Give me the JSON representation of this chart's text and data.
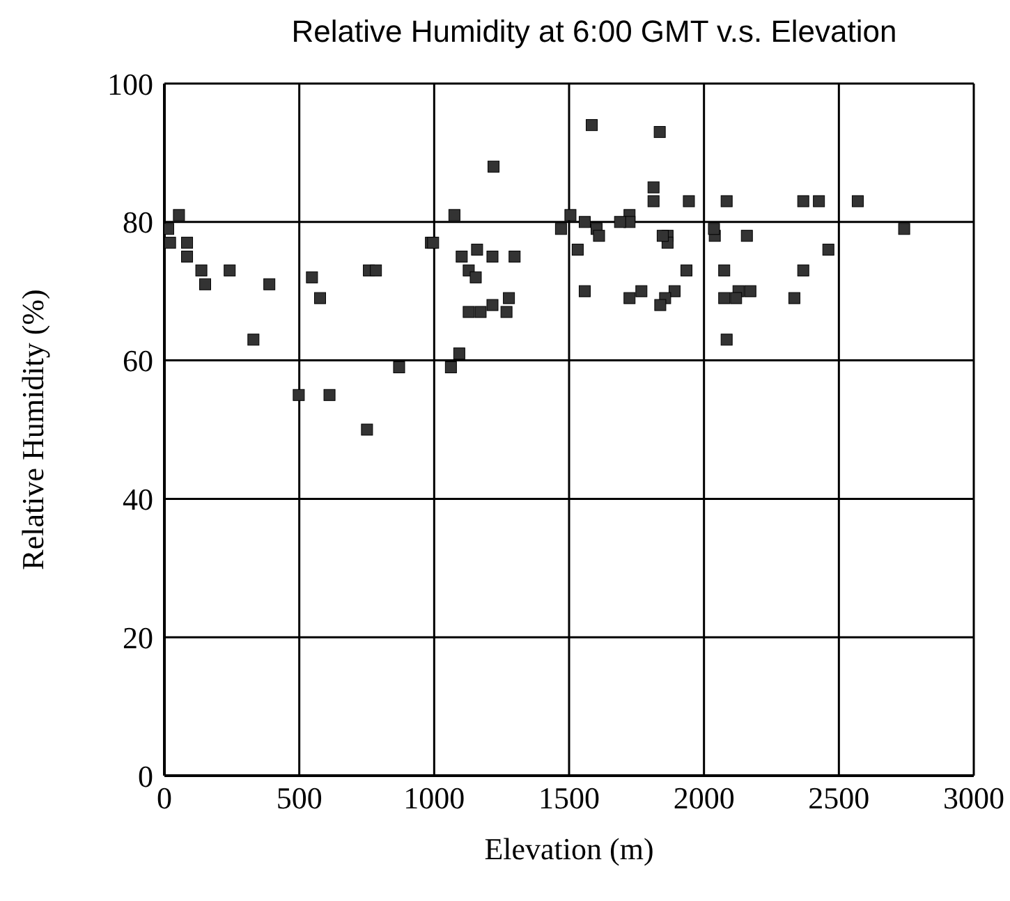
{
  "chart_data": {
    "type": "scatter",
    "title": "Relative Humidity at 6:00 GMT v.s. Elevation",
    "xlabel": "Elevation (m)",
    "ylabel": "Relative Humidity (%)",
    "x": [
      54,
      14,
      21,
      84,
      84,
      137,
      151,
      242,
      389,
      547,
      577,
      758,
      784,
      988,
      330,
      870,
      498,
      612,
      751,
      1075,
      996,
      1159,
      1102,
      1216,
      1298,
      1128,
      1154,
      1128,
      1172,
      1216,
      1277,
      1268,
      1093,
      1062,
      1220,
      1813,
      1813,
      1944,
      1724,
      1724,
      1689,
      1505,
      1470,
      1558,
      1602,
      1611,
      1532,
      1865,
      1865,
      1847,
      1935,
      1558,
      1768,
      1724,
      1891,
      1856,
      1838,
      2040,
      1584,
      1836,
      2084,
      2368,
      2426,
      2570,
      2037,
      2159,
      2461,
      2742,
      2075,
      2368,
      2128,
      2172,
      2075,
      2119,
      2335,
      2084
    ],
    "values": [
      81,
      79,
      77,
      77,
      75,
      73,
      71,
      73,
      71,
      72,
      69,
      73,
      73,
      77,
      63,
      59,
      55,
      55,
      50,
      81,
      77,
      76,
      75,
      75,
      75,
      73,
      72,
      67,
      67,
      68,
      69,
      67,
      61,
      59,
      88,
      85,
      83,
      83,
      81,
      80,
      80,
      81,
      79,
      80,
      79,
      78,
      76,
      78,
      77,
      78,
      73,
      70,
      70,
      69,
      70,
      69,
      68,
      78,
      94,
      93,
      83,
      83,
      83,
      83,
      79,
      78,
      76,
      79,
      73,
      73,
      70,
      70,
      69,
      69,
      69,
      63
    ],
    "color": "#333333",
    "marker": "square",
    "xlim": [
      0,
      3000
    ],
    "xticks": [
      0,
      500,
      1000,
      1500,
      2000,
      2500,
      3000
    ],
    "ylim": [
      0,
      100
    ],
    "yticks": [
      0,
      20,
      40,
      60,
      80,
      100
    ],
    "grid": true
  }
}
